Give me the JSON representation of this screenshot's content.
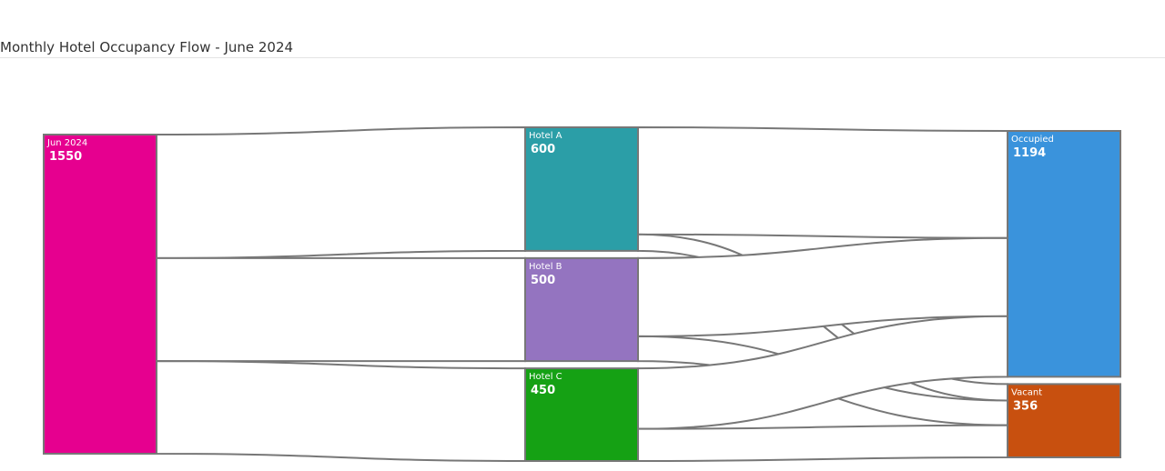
{
  "chart_data": {
    "type": "sankey",
    "title": "Monthly Hotel Occupancy Flow - June 2024",
    "nodes": [
      {
        "id": "jun2024",
        "label": "Jun 2024",
        "value": 1550,
        "color": "#e6008f"
      },
      {
        "id": "hotelA",
        "label": "Hotel A",
        "value": 600,
        "color": "#2b9ea7"
      },
      {
        "id": "hotelB",
        "label": "Hotel B",
        "value": 500,
        "color": "#9474c0"
      },
      {
        "id": "hotelC",
        "label": "Hotel C",
        "value": 450,
        "color": "#15a114"
      },
      {
        "id": "occupied",
        "label": "Occupied",
        "value": 1194,
        "color": "#3a93dc"
      },
      {
        "id": "vacant",
        "label": "Vacant",
        "value": 356,
        "color": "#c8500f"
      }
    ],
    "links": [
      {
        "source": "jun2024",
        "target": "hotelA",
        "value": 600
      },
      {
        "source": "jun2024",
        "target": "hotelB",
        "value": 500
      },
      {
        "source": "jun2024",
        "target": "hotelC",
        "value": 450
      },
      {
        "source": "hotelA",
        "target": "occupied",
        "value": 520
      },
      {
        "source": "hotelA",
        "target": "vacant",
        "value": 80
      },
      {
        "source": "hotelB",
        "target": "occupied",
        "value": 380
      },
      {
        "source": "hotelB",
        "target": "vacant",
        "value": 120
      },
      {
        "source": "hotelC",
        "target": "occupied",
        "value": 294
      },
      {
        "source": "hotelC",
        "target": "vacant",
        "value": 156
      }
    ],
    "link_stroke_color": "#777777",
    "link_fill_color": "#ffffff"
  }
}
